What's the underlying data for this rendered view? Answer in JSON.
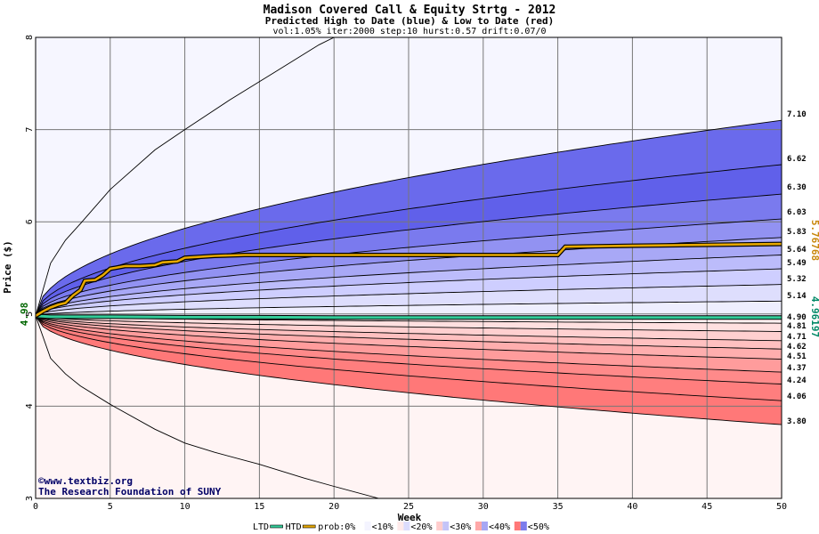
{
  "chart_data": {
    "type": "area",
    "title": "Madison Covered Call & Equity Strtg - 2012",
    "subtitle": "Predicted High to Date (blue) &  Low to Date (red)",
    "params_line": "vol:1.05% iter:2000 step:10 hurst:0.57 drift:0.07/0",
    "xlabel": "Week",
    "ylabel": "Price ($)",
    "xlim": [
      0,
      50
    ],
    "ylim": [
      3,
      8
    ],
    "x_ticks": [
      0,
      5,
      10,
      15,
      20,
      25,
      30,
      35,
      40,
      45,
      50
    ],
    "y_ticks": [
      3,
      4,
      5,
      6,
      7,
      8
    ],
    "grid": true,
    "start_price": 4.98,
    "start_price_label": "4.98",
    "high_bands_end": [
      5.14,
      5.32,
      5.49,
      5.64,
      5.83,
      6.03,
      6.3,
      6.62,
      7.1
    ],
    "high_outer_envelope": {
      "x": [
        0,
        1,
        2,
        3,
        5,
        8,
        10,
        13,
        16,
        19,
        20
      ],
      "y": [
        4.98,
        5.55,
        5.8,
        5.98,
        6.35,
        6.78,
        7.0,
        7.32,
        7.62,
        7.92,
        8.0
      ]
    },
    "low_bands_end": [
      4.9,
      4.81,
      4.71,
      4.62,
      4.51,
      4.37,
      4.24,
      4.06,
      3.8
    ],
    "low_outer_envelope": {
      "x": [
        0,
        1,
        2,
        3,
        5,
        8,
        10,
        12,
        15,
        18,
        20,
        23
      ],
      "y": [
        4.98,
        4.52,
        4.35,
        4.22,
        4.02,
        3.75,
        3.6,
        3.5,
        3.37,
        3.22,
        3.13,
        3.0
      ]
    },
    "end_labels": [
      "7.10",
      "6.62",
      "6.30",
      "6.03",
      "5.83",
      "5.64",
      "5.49",
      "5.32",
      "5.14",
      "4.90",
      "4.81",
      "4.71",
      "4.62",
      "4.51",
      "4.37",
      "4.24",
      "4.06",
      "3.80"
    ],
    "series": [
      {
        "name": "HTD",
        "color": "#e6a800",
        "x": [
          0,
          0.5,
          1,
          1.5,
          2,
          2.5,
          3,
          3.3,
          4,
          4.5,
          5,
          6,
          7,
          8,
          8.5,
          9.5,
          10,
          11,
          12,
          14,
          18,
          20,
          24,
          28,
          30,
          33,
          35,
          35.5,
          40,
          45,
          50
        ],
        "y": [
          4.98,
          5.03,
          5.07,
          5.1,
          5.12,
          5.2,
          5.26,
          5.36,
          5.37,
          5.42,
          5.49,
          5.52,
          5.52,
          5.53,
          5.56,
          5.57,
          5.61,
          5.62,
          5.63,
          5.64,
          5.64,
          5.64,
          5.64,
          5.64,
          5.64,
          5.64,
          5.64,
          5.73,
          5.74,
          5.75,
          5.76
        ]
      },
      {
        "name": "LTD",
        "color": "#33cc99",
        "x": [
          0,
          1,
          5,
          10,
          15,
          20,
          25,
          30,
          35,
          40,
          45,
          50
        ],
        "y": [
          4.98,
          4.97,
          4.97,
          4.965,
          4.965,
          4.962,
          4.962,
          4.962,
          4.962,
          4.962,
          4.962,
          4.962
        ]
      }
    ],
    "side_values": {
      "htd_current": "5.76768",
      "ltd_current": "4.96197",
      "htd_color": "#c8860a",
      "ltd_color": "#008866"
    },
    "legend": {
      "placement": "bottom",
      "items": [
        {
          "label": "LTD",
          "swatch": "line",
          "color": "#33cc99"
        },
        {
          "label": "HTD",
          "swatch": "line",
          "color": "#e6a800"
        },
        {
          "label": "prob:0%",
          "swatch": "none"
        },
        {
          "label": "<10%",
          "colors": [
            "#ffffff",
            "#f4f4ff"
          ]
        },
        {
          "label": "<20%",
          "colors": [
            "#ffeaea",
            "#dcdcfc"
          ]
        },
        {
          "label": "<30%",
          "colors": [
            "#ffcccc",
            "#c4c4f8"
          ]
        },
        {
          "label": "<40%",
          "colors": [
            "#ffa8a8",
            "#a6a6f4"
          ]
        },
        {
          "label": "<50%",
          "colors": [
            "#ff7878",
            "#7c7cec"
          ]
        }
      ]
    },
    "copyright_line1": "©www.textbiz.org",
    "copyright_line2": "The Research Foundation of SUNY",
    "colors": {
      "high_bands": [
        "#eeeefe",
        "#dedefd",
        "#ceceff",
        "#bcbcfb",
        "#a8a8f6",
        "#9292f2",
        "#7a7aee",
        "#6060ea",
        "#6a6aec"
      ],
      "low_bands": [
        "#fff0f0",
        "#ffe0e0",
        "#ffd0d0",
        "#ffc0c0",
        "#ffaeae",
        "#ff9c9c",
        "#ff8a8a",
        "#ff7e7e",
        "#ff7878"
      ],
      "high_outer_fill": "#f6f6ff",
      "low_outer_fill": "#fff4f4"
    }
  }
}
